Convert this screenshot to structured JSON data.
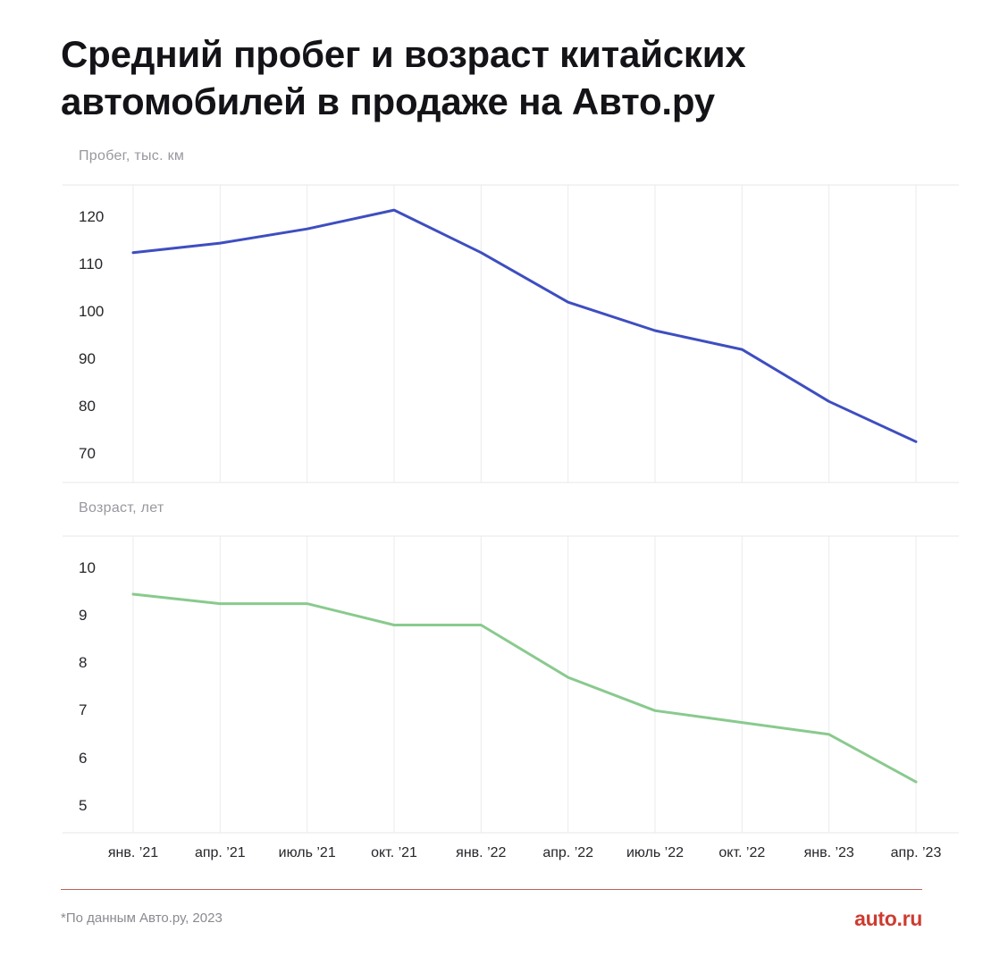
{
  "header": {
    "title_lines": [
      "Средний пробег и возраст китайских",
      "автомобилей в продаже на Авто.ру"
    ]
  },
  "chart_data": [
    {
      "id": "mileage",
      "type": "line",
      "title": "Пробег, тыс. км",
      "xlabel": "",
      "ylabel": "Пробег, тыс. км",
      "categories": [
        "янв. ’21",
        "апр. ’21",
        "июль ’21",
        "окт. ’21",
        "янв. ’22",
        "апр. ’22",
        "июль ’22",
        "окт. ’22",
        "янв. ’23",
        "апр. ’23"
      ],
      "values": [
        112.5,
        114.5,
        117.5,
        121.5,
        112.5,
        102,
        96,
        92,
        81,
        72.5
      ],
      "yticks": [
        120,
        110,
        100,
        90,
        80,
        70
      ],
      "ylim": [
        64,
        127
      ],
      "grid": "vertical-only",
      "legend_position": "none",
      "line_color": "#3e4ec0"
    },
    {
      "id": "age",
      "type": "line",
      "title": "Возраст, лет",
      "xlabel": "",
      "ylabel": "Возраст, лет",
      "categories": [
        "янв. ’21",
        "апр. ’21",
        "июль ’21",
        "окт. ’21",
        "янв. ’22",
        "апр. ’22",
        "июль ’22",
        "окт. ’22",
        "янв. ’23",
        "апр. ’23"
      ],
      "values": [
        9.45,
        9.25,
        9.25,
        8.8,
        8.8,
        7.7,
        7.0,
        6.75,
        6.5,
        5.5
      ],
      "yticks": [
        10,
        9,
        8,
        7,
        6,
        5
      ],
      "ylim": [
        4.4,
        10.7
      ],
      "grid": "vertical-only",
      "legend_position": "none",
      "line_color": "#89ca8e"
    }
  ],
  "footer": {
    "note": "*По данным Авто.ру, 2023",
    "logo": "auto.ru",
    "logo_color": "#ce3b30",
    "divider_color": "#c75f55"
  }
}
